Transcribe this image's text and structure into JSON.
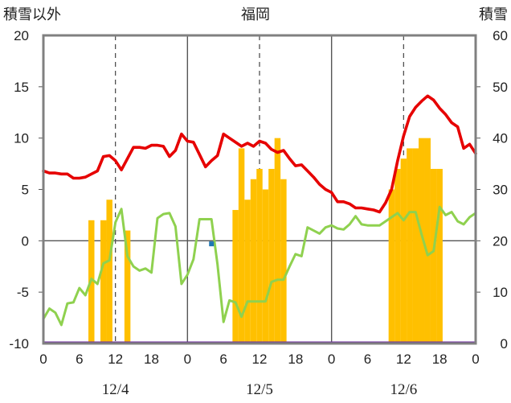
{
  "chart_data": {
    "type": "line",
    "title": "福岡",
    "left_axis_label": "積雪以外",
    "right_axis_label": "積雪",
    "left_ylim": [
      -10,
      20
    ],
    "left_ticks": [
      -10,
      -5,
      0,
      5,
      10,
      15,
      20
    ],
    "right_ylim": [
      0,
      60
    ],
    "right_ticks": [
      0,
      10,
      20,
      30,
      40,
      50,
      60
    ],
    "x_range_hours": [
      0,
      72
    ],
    "x_tick_labels": [
      "0",
      "6",
      "12",
      "18",
      "0",
      "6",
      "12",
      "18",
      "0",
      "6",
      "12",
      "18",
      "0"
    ],
    "date_labels": [
      {
        "label": "12/4",
        "hour": 12
      },
      {
        "label": "12/5",
        "hour": 36
      },
      {
        "label": "12/6",
        "hour": 60
      }
    ],
    "grid": "dashed vertical at 12h, solid vertical at day boundaries, solid horizontal at 0",
    "colors": {
      "temperature": "#e60000",
      "dew_point": "#8fd14f",
      "snow_depth": "#ffc000",
      "precip_marker": "#1f77b4",
      "baseline": "#7030a0",
      "frame": "#808080"
    },
    "series": [
      {
        "key": "temperature",
        "axis": "left",
        "values": [
          6.8,
          6.6,
          6.6,
          6.5,
          6.5,
          6.1,
          6.1,
          6.2,
          6.5,
          6.8,
          8.2,
          8.3,
          7.8,
          6.9,
          8.0,
          9.1,
          9.1,
          9.0,
          9.3,
          9.3,
          9.2,
          8.2,
          8.8,
          10.4,
          9.7,
          9.6,
          8.4,
          7.2,
          7.8,
          8.3,
          10.4,
          10.0,
          9.6,
          9.2,
          9.5,
          9.2,
          9.7,
          9.5,
          8.9,
          8.6,
          8.8,
          8.0,
          7.3,
          7.4,
          6.8,
          6.2,
          5.5,
          5.0,
          4.7,
          3.8,
          3.8,
          3.6,
          3.2,
          3.2,
          3.1,
          3.0,
          2.8,
          3.7,
          5.0,
          7.8,
          10.2,
          12.1,
          13.0,
          13.6,
          14.1,
          13.7,
          12.9,
          12.3,
          11.5,
          11.1,
          9.0,
          9.4,
          8.5
        ]
      },
      {
        "key": "dew_point",
        "axis": "left",
        "values": [
          -7.6,
          -6.6,
          -7.0,
          -8.2,
          -6.1,
          -6.0,
          -4.6,
          -5.3,
          -3.7,
          -4.2,
          -2.2,
          -1.9,
          1.8,
          3.1,
          -1.5,
          -2.5,
          -2.9,
          -2.7,
          -3.1,
          2.2,
          2.6,
          2.7,
          1.4,
          -4.2,
          -3.3,
          -1.8,
          2.1,
          2.1,
          2.1,
          -2.3,
          -7.9,
          -5.8,
          -6.0,
          -7.4,
          -5.9,
          -5.9,
          -5.9,
          -5.9,
          -4.0,
          -3.8,
          -3.8,
          -2.5,
          -1.3,
          -1.5,
          1.3,
          1.0,
          0.7,
          1.3,
          1.5,
          1.2,
          1.1,
          1.6,
          2.4,
          1.6,
          1.5,
          1.5,
          1.5,
          1.9,
          2.3,
          2.7,
          2.0,
          2.8,
          2.8,
          0.6,
          -1.4,
          -1.0,
          3.3,
          2.5,
          2.8,
          1.9,
          1.6,
          2.3,
          2.7
        ]
      },
      {
        "key": "snow_depth",
        "axis": "right",
        "type": "bar",
        "values": [
          0,
          0,
          0,
          0,
          0,
          0,
          0,
          0,
          24,
          0,
          24,
          28,
          0,
          0,
          22,
          0,
          0,
          0,
          0,
          0,
          0,
          0,
          0,
          0,
          0,
          0,
          0,
          0,
          0,
          0,
          0,
          0,
          26,
          38,
          28,
          32,
          34,
          30,
          34,
          40,
          32,
          0,
          0,
          0,
          0,
          0,
          0,
          0,
          0,
          0,
          0,
          0,
          0,
          0,
          0,
          0,
          0,
          0,
          30,
          34,
          36,
          38,
          38,
          40,
          40,
          34,
          34,
          0,
          0,
          0,
          0,
          0,
          0
        ]
      }
    ],
    "precip_marker_points": [
      {
        "hour": 28,
        "value": -0.3
      }
    ]
  }
}
